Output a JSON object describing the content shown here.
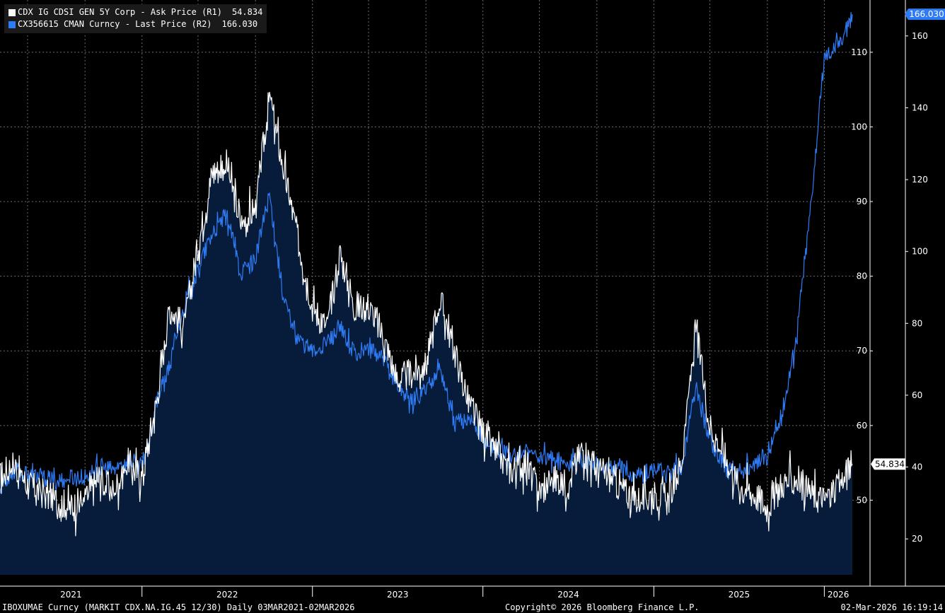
{
  "legend": [
    {
      "label": "CDX IG CDSI GEN 5Y Corp - Ask Price (R1)",
      "value": "54.834",
      "color": "#ffffff"
    },
    {
      "label": "CX356615 CMAN Curncy - Last Price (R2)",
      "value": "166.030",
      "color": "#2f7bf5"
    }
  ],
  "footer": {
    "left": "IBOXUMAE Curncy (MARKIT CDX.NA.IG.45 12/30) Daily 03MAR2021-02MAR2026",
    "center": "Copyright© 2026 Bloomberg Finance L.P.",
    "right": "02-Mar-2026 16:19:14"
  },
  "colors": {
    "background": "#000000",
    "area_fill": "#061c3a",
    "cdx_line": "#ffffff",
    "cman_line": "#2f7bf5",
    "grid": "#6a6a6a"
  },
  "chart_data": {
    "type": "line",
    "x_range": [
      "2021-03-03",
      "2026-03-02"
    ],
    "x_ticks": [
      "2021",
      "2022",
      "2023",
      "2024",
      "2025",
      "2026"
    ],
    "grid": true,
    "legend_position": "top-left",
    "r1_axis": {
      "ticks": [
        50,
        60,
        70,
        80,
        90,
        100,
        110
      ],
      "range": [
        40,
        117
      ]
    },
    "r2_axis": {
      "ticks": [
        20,
        40,
        60,
        80,
        100,
        120,
        140,
        160
      ],
      "range": [
        10,
        170
      ]
    },
    "last_value_tags": [
      {
        "series": "R1",
        "label": "54.834",
        "value": 54.834
      },
      {
        "series": "R2",
        "label": "166.030",
        "value": 166.03
      }
    ],
    "series": [
      {
        "name": "CDX IG CDSI GEN 5Y Corp - Ask Price (R1)",
        "axis": "R1",
        "area": true,
        "points": [
          [
            "2021-03-03",
            53
          ],
          [
            "2021-04-01",
            55
          ],
          [
            "2021-05-01",
            52
          ],
          [
            "2021-06-01",
            51
          ],
          [
            "2021-07-01",
            50
          ],
          [
            "2021-08-01",
            49
          ],
          [
            "2021-09-01",
            50
          ],
          [
            "2021-10-01",
            53
          ],
          [
            "2021-11-01",
            51
          ],
          [
            "2021-12-01",
            55
          ],
          [
            "2022-01-01",
            53
          ],
          [
            "2022-02-01",
            63
          ],
          [
            "2022-03-01",
            76
          ],
          [
            "2022-04-01",
            73
          ],
          [
            "2022-05-01",
            84
          ],
          [
            "2022-06-01",
            94
          ],
          [
            "2022-07-01",
            95
          ],
          [
            "2022-08-01",
            87
          ],
          [
            "2022-09-01",
            89
          ],
          [
            "2022-10-01",
            104
          ],
          [
            "2022-11-01",
            94
          ],
          [
            "2022-12-01",
            85
          ],
          [
            "2023-01-01",
            76
          ],
          [
            "2023-02-01",
            73
          ],
          [
            "2023-03-01",
            83
          ],
          [
            "2023-04-01",
            76
          ],
          [
            "2023-05-01",
            76
          ],
          [
            "2023-06-01",
            72
          ],
          [
            "2023-07-01",
            66
          ],
          [
            "2023-08-01",
            67
          ],
          [
            "2023-09-01",
            68
          ],
          [
            "2023-10-01",
            77
          ],
          [
            "2023-11-01",
            70
          ],
          [
            "2023-12-01",
            63
          ],
          [
            "2024-01-01",
            59
          ],
          [
            "2024-02-01",
            56
          ],
          [
            "2024-03-01",
            54
          ],
          [
            "2024-04-01",
            55
          ],
          [
            "2024-05-01",
            51
          ],
          [
            "2024-06-01",
            53
          ],
          [
            "2024-07-01",
            52
          ],
          [
            "2024-08-01",
            57
          ],
          [
            "2024-09-01",
            54
          ],
          [
            "2024-10-01",
            53
          ],
          [
            "2024-11-01",
            51
          ],
          [
            "2024-12-01",
            50
          ],
          [
            "2025-01-01",
            51
          ],
          [
            "2025-02-01",
            50
          ],
          [
            "2025-03-01",
            55
          ],
          [
            "2025-04-01",
            73
          ],
          [
            "2025-05-01",
            60
          ],
          [
            "2025-06-01",
            56
          ],
          [
            "2025-07-01",
            52
          ],
          [
            "2025-08-01",
            51
          ],
          [
            "2025-09-01",
            49
          ],
          [
            "2025-10-01",
            52
          ],
          [
            "2025-11-01",
            53
          ],
          [
            "2025-12-01",
            51
          ],
          [
            "2026-01-01",
            50
          ],
          [
            "2026-02-01",
            52
          ],
          [
            "2026-03-02",
            54.834
          ]
        ]
      },
      {
        "name": "CX356615 CMAN Curncy - Last Price (R2)",
        "axis": "R2",
        "area": false,
        "points": [
          [
            "2021-03-03",
            35
          ],
          [
            "2021-04-01",
            39
          ],
          [
            "2021-05-01",
            38
          ],
          [
            "2021-06-01",
            37
          ],
          [
            "2021-07-01",
            36
          ],
          [
            "2021-08-01",
            37
          ],
          [
            "2021-09-01",
            37
          ],
          [
            "2021-10-01",
            40
          ],
          [
            "2021-11-01",
            39
          ],
          [
            "2021-12-01",
            42
          ],
          [
            "2022-01-01",
            40
          ],
          [
            "2022-02-01",
            58
          ],
          [
            "2022-03-01",
            68
          ],
          [
            "2022-04-01",
            85
          ],
          [
            "2022-05-01",
            95
          ],
          [
            "2022-06-01",
            105
          ],
          [
            "2022-07-01",
            110
          ],
          [
            "2022-08-01",
            94
          ],
          [
            "2022-09-01",
            98
          ],
          [
            "2022-10-01",
            116
          ],
          [
            "2022-11-01",
            86
          ],
          [
            "2022-12-01",
            76
          ],
          [
            "2023-01-01",
            72
          ],
          [
            "2023-02-01",
            75
          ],
          [
            "2023-03-01",
            78
          ],
          [
            "2023-04-01",
            72
          ],
          [
            "2023-05-01",
            73
          ],
          [
            "2023-06-01",
            70
          ],
          [
            "2023-07-01",
            63
          ],
          [
            "2023-08-01",
            58
          ],
          [
            "2023-09-01",
            62
          ],
          [
            "2023-10-01",
            68
          ],
          [
            "2023-11-01",
            52
          ],
          [
            "2023-12-01",
            54
          ],
          [
            "2024-01-01",
            48
          ],
          [
            "2024-02-01",
            45
          ],
          [
            "2024-03-01",
            43
          ],
          [
            "2024-04-01",
            44
          ],
          [
            "2024-05-01",
            43
          ],
          [
            "2024-06-01",
            42
          ],
          [
            "2024-07-01",
            41
          ],
          [
            "2024-08-01",
            42
          ],
          [
            "2024-09-01",
            41
          ],
          [
            "2024-10-01",
            40
          ],
          [
            "2024-11-01",
            39
          ],
          [
            "2024-12-01",
            38
          ],
          [
            "2025-01-01",
            39
          ],
          [
            "2025-02-01",
            38
          ],
          [
            "2025-03-01",
            40
          ],
          [
            "2025-04-01",
            62
          ],
          [
            "2025-05-01",
            48
          ],
          [
            "2025-06-01",
            40
          ],
          [
            "2025-07-01",
            37
          ],
          [
            "2025-08-01",
            41
          ],
          [
            "2025-09-01",
            43
          ],
          [
            "2025-10-01",
            54
          ],
          [
            "2025-11-01",
            75
          ],
          [
            "2025-12-01",
            110
          ],
          [
            "2026-01-01",
            154
          ],
          [
            "2026-02-01",
            158
          ],
          [
            "2026-03-02",
            166.03
          ]
        ]
      }
    ]
  }
}
